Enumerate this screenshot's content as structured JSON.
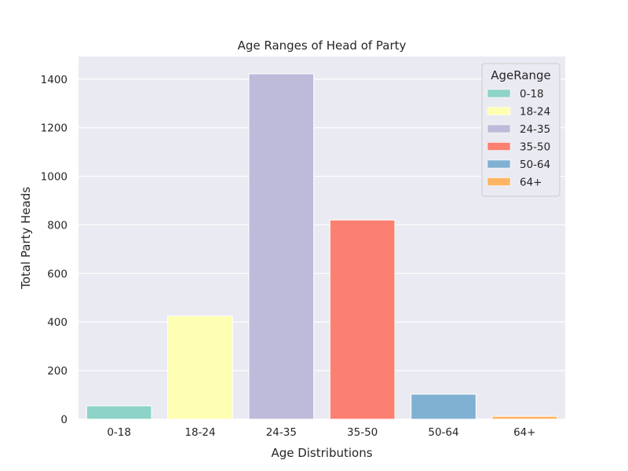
{
  "chart_data": {
    "type": "bar",
    "title": "Age Ranges of Head of Party",
    "xlabel": "Age Distributions",
    "ylabel": "Total Party Heads",
    "categories": [
      "0-18",
      "18-24",
      "24-35",
      "35-50",
      "50-64",
      "64+"
    ],
    "values": [
      55,
      425,
      1422,
      820,
      103,
      12
    ],
    "colors": [
      "#8dd3c7",
      "#ffffb3",
      "#bebada",
      "#fb8072",
      "#80b1d3",
      "#fdb462"
    ],
    "ylim": [
      0,
      1493
    ],
    "yticks": [
      0,
      200,
      400,
      600,
      800,
      1000,
      1200,
      1400
    ],
    "grid": true,
    "legend": {
      "title": "AgeRange",
      "placement": "top-right",
      "entries": [
        "0-18",
        "18-24",
        "24-35",
        "35-50",
        "50-64",
        "64+"
      ]
    }
  }
}
